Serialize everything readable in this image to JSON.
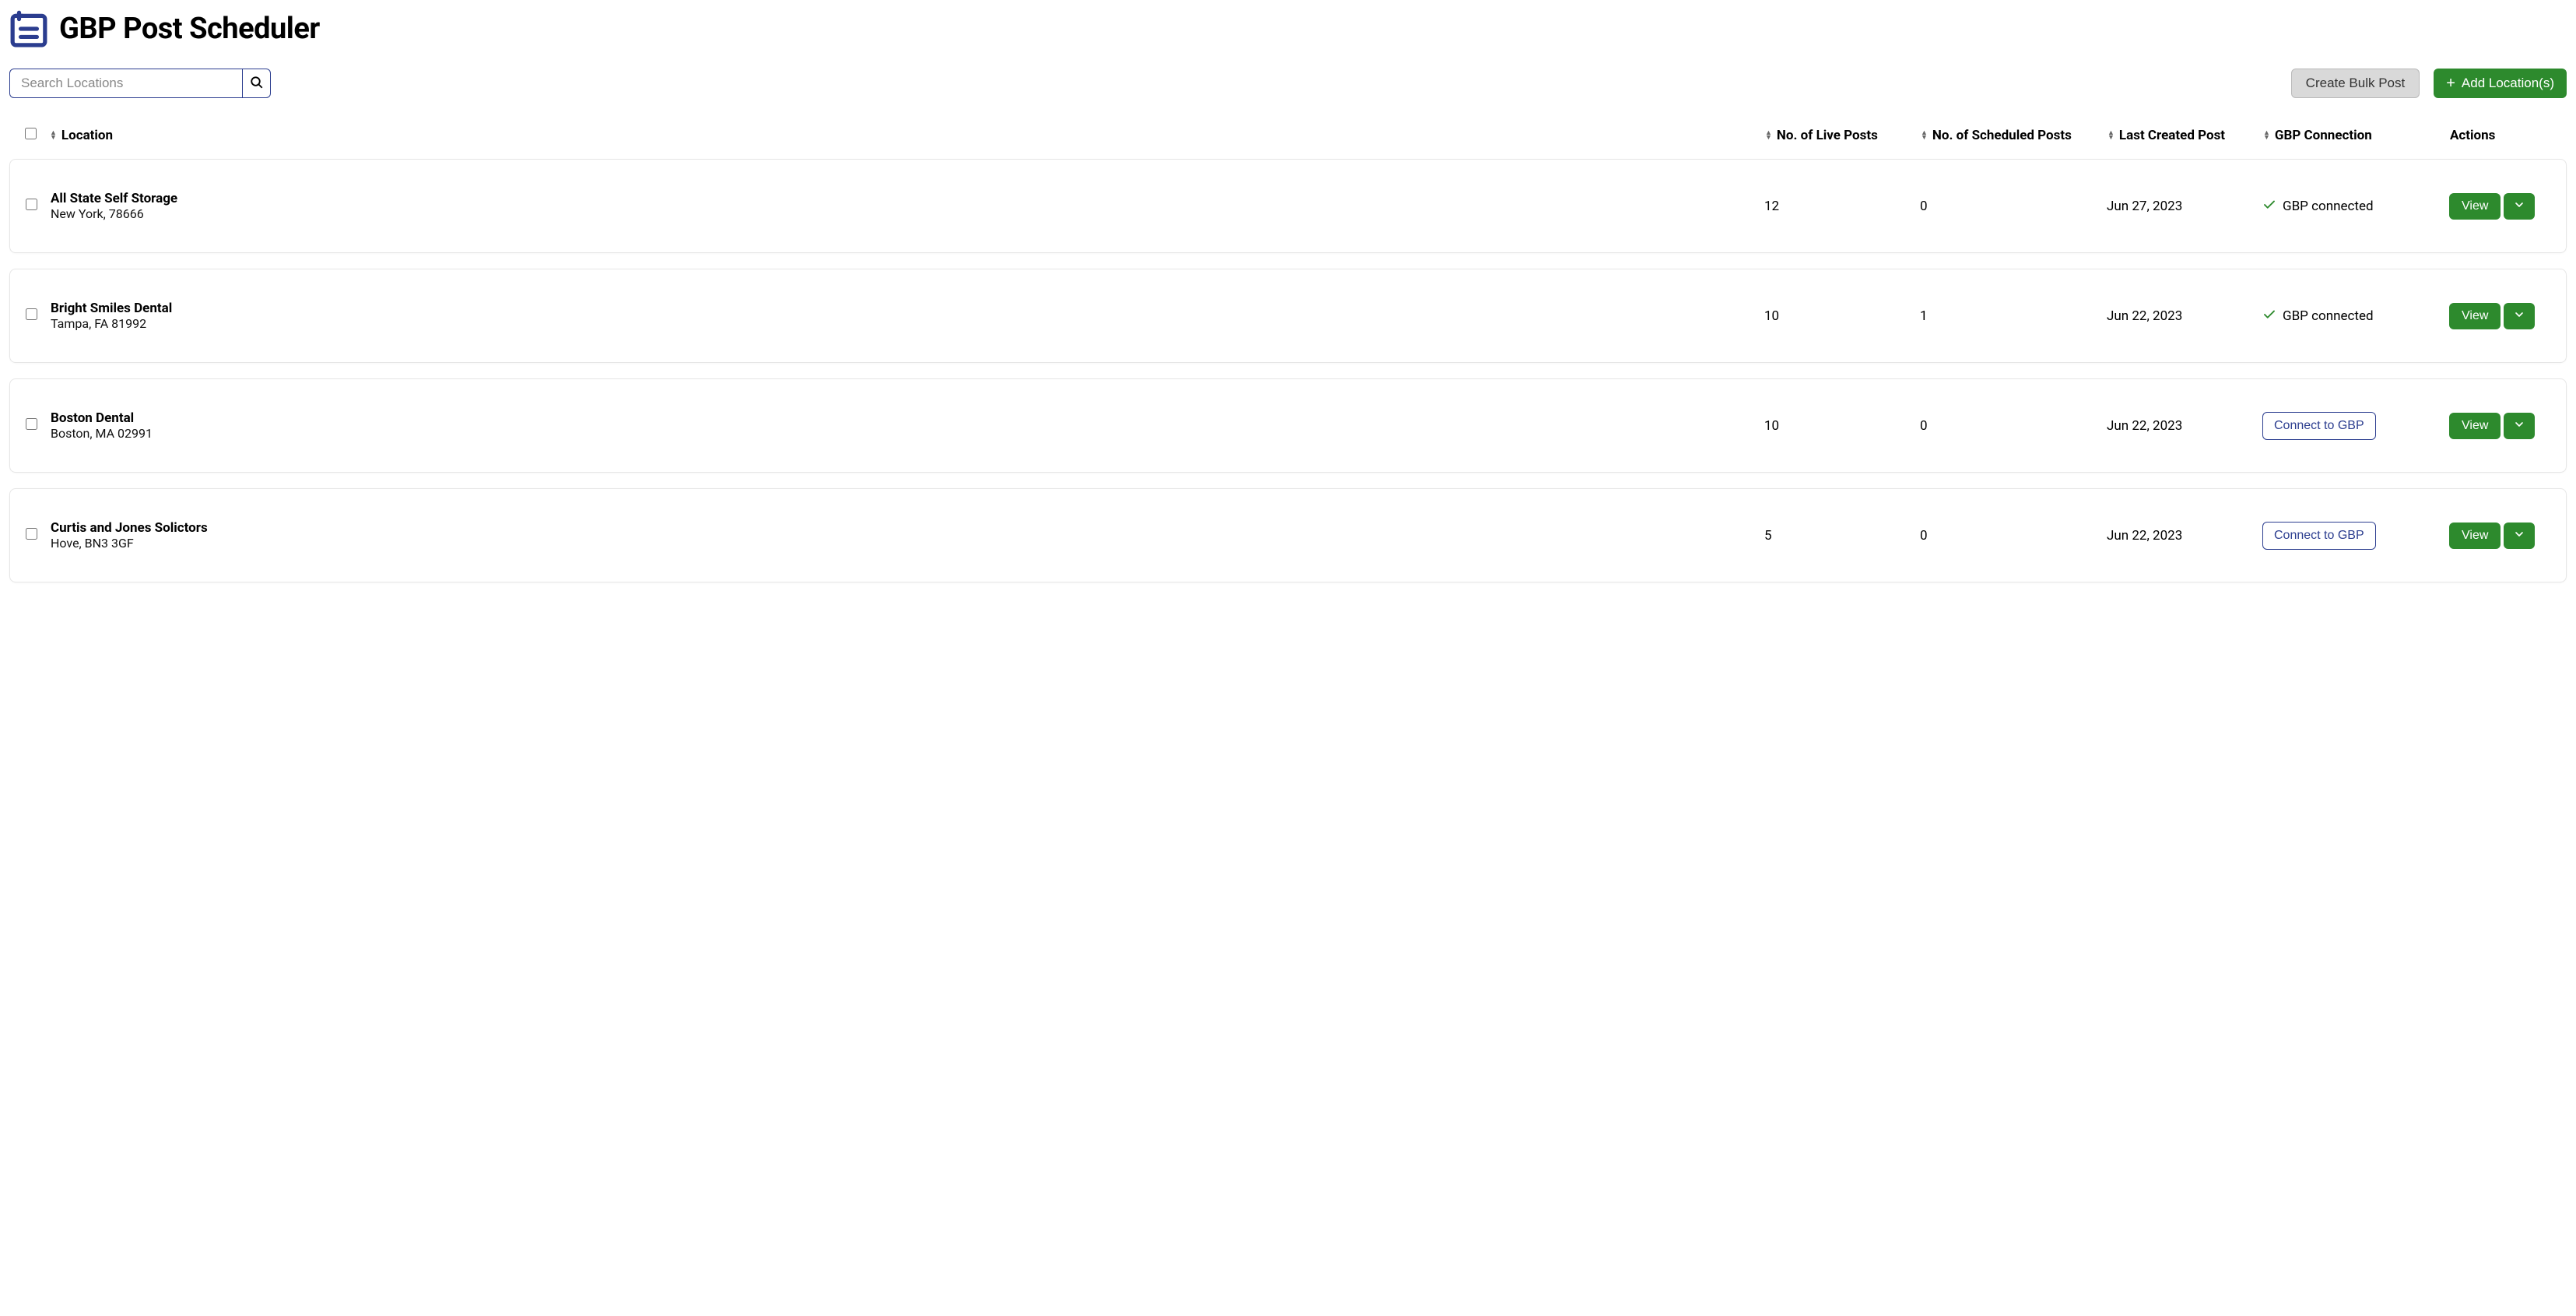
{
  "page": {
    "title": "GBP Post Scheduler",
    "icon_primary": "#2b3d8f"
  },
  "search": {
    "placeholder": "Search Locations",
    "value": ""
  },
  "toolbar": {
    "bulk_label": "Create Bulk Post",
    "add_label": "Add Location(s)"
  },
  "columns": {
    "location": "Location",
    "live": "No. of Live Posts",
    "scheduled": "No. of Scheduled Posts",
    "last": "Last Created Post",
    "conn": "GBP Connection",
    "actions": "Actions"
  },
  "labels": {
    "connected": "GBP connected",
    "connect_cta": "Connect to GBP",
    "view": "View"
  },
  "colors": {
    "primary_green": "#2d8a2d",
    "frame_blue": "#2b3d8f",
    "secondary_bg": "#d9d9d9",
    "border": "#e6e6e6"
  },
  "rows": [
    {
      "name": "All State Self Storage",
      "sub": "New York, 78666",
      "live": "12",
      "scheduled": "0",
      "last": "Jun 27, 2023",
      "connected": true
    },
    {
      "name": "Bright Smiles Dental",
      "sub": "Tampa, FA 81992",
      "live": "10",
      "scheduled": "1",
      "last": "Jun 22, 2023",
      "connected": true
    },
    {
      "name": "Boston Dental",
      "sub": "Boston, MA 02991",
      "live": "10",
      "scheduled": "0",
      "last": "Jun 22, 2023",
      "connected": false
    },
    {
      "name": "Curtis and Jones Solictors",
      "sub": "Hove, BN3 3GF",
      "live": "5",
      "scheduled": "0",
      "last": "Jun 22, 2023",
      "connected": false
    }
  ]
}
